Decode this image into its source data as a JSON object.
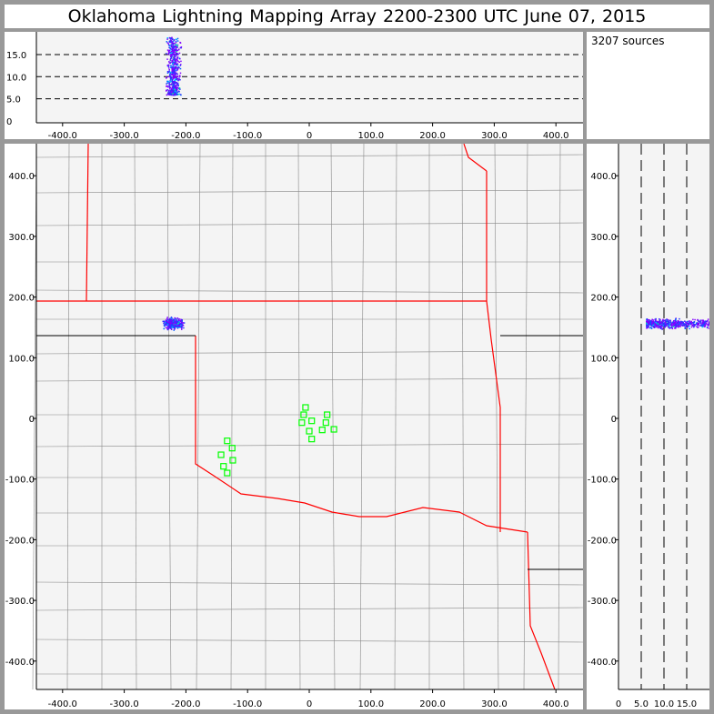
{
  "title": "Oklahoma Lightning Mapping Array   2200-2300 UTC  June 07, 2015",
  "source_count": "3207 sources",
  "colors": {
    "background": "#f4f4f4",
    "state_border": "#ff0000",
    "county_line": "#888888",
    "station": "#00ff00"
  },
  "plan_axes": {
    "x_ticks": [
      "-400.0",
      "-300.0",
      "-200.0",
      "-100.0",
      "0",
      "100.0",
      "200.0",
      "300.0",
      "400.0"
    ],
    "y_ticks": [
      "400.0",
      "300.0",
      "200.0",
      "100.0",
      "0",
      "-100.0",
      "-200.0",
      "-300.0",
      "-400.0"
    ],
    "range_km": [
      -442,
      442
    ]
  },
  "altitude_axes": {
    "ticks": [
      "0",
      "5.0",
      "10.0",
      "15.0"
    ],
    "dashed_levels_km": [
      5,
      10,
      15
    ],
    "range_km": [
      0,
      20
    ]
  },
  "lightning_cluster": {
    "center_km": [
      -221,
      157
    ],
    "altitude_km": [
      6,
      19
    ]
  },
  "stations_km": [
    [
      -6,
      18
    ],
    [
      -9,
      6
    ],
    [
      -12,
      -7
    ],
    [
      4,
      -4
    ],
    [
      21,
      -19
    ],
    [
      29,
      6
    ],
    [
      27,
      -7
    ],
    [
      40,
      -18
    ],
    [
      0,
      -21
    ],
    [
      4,
      -34
    ],
    [
      -133,
      -37
    ],
    [
      -125,
      -49
    ],
    [
      -143,
      -60
    ],
    [
      -124,
      -69
    ],
    [
      -139,
      -79
    ],
    [
      -133,
      -90
    ]
  ]
}
